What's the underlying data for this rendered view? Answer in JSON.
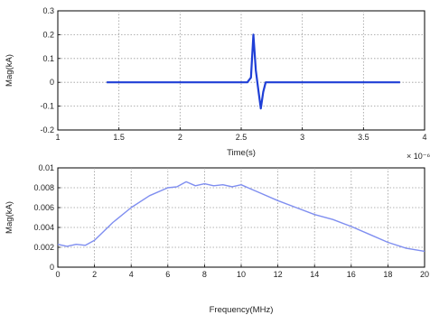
{
  "colors": {
    "line": "#1f3fd6",
    "line_light": "#7f8ef0",
    "grid": "#9a9a9a",
    "axis": "#000000"
  },
  "chart_data": [
    {
      "type": "line",
      "title": "",
      "xlabel": "Time(s)",
      "ylabel": "Mag(kA)",
      "x_multiplier_label": "× 10⁻⁶",
      "xlim": [
        1,
        4
      ],
      "ylim": [
        -0.2,
        0.3
      ],
      "xticks": [
        1,
        1.5,
        2,
        2.5,
        3,
        3.5,
        4
      ],
      "xtick_labels": [
        "1",
        "1.5",
        "2",
        "2.5",
        "3",
        "3.5",
        "4"
      ],
      "yticks": [
        -0.2,
        -0.1,
        0,
        0.1,
        0.2,
        0.3
      ],
      "ytick_labels": [
        "-0.2",
        "-0.1",
        "0",
        "0.1",
        "0.2",
        "0.3"
      ],
      "grid": true,
      "series": [
        {
          "x": [
            1.4,
            1.6,
            1.8,
            2.0,
            2.2,
            2.4,
            2.55,
            2.58,
            2.6,
            2.62,
            2.64,
            2.66,
            2.68,
            2.7,
            2.8,
            3.0,
            3.2,
            3.4,
            3.6,
            3.8
          ],
          "y": [
            0,
            0,
            0,
            0,
            0,
            0,
            0,
            0.02,
            0.2,
            0.05,
            -0.03,
            -0.11,
            -0.04,
            0,
            0,
            0,
            0,
            0,
            0,
            0
          ]
        }
      ]
    },
    {
      "type": "line",
      "title": "",
      "xlabel": "Frequency(MHz)",
      "ylabel": "Mag(kA)",
      "xlim": [
        0,
        20
      ],
      "ylim": [
        0,
        0.01
      ],
      "xticks": [
        0,
        2,
        4,
        6,
        8,
        10,
        12,
        14,
        16,
        18,
        20
      ],
      "xtick_labels": [
        "0",
        "2",
        "4",
        "6",
        "8",
        "10",
        "12",
        "14",
        "16",
        "18",
        "20"
      ],
      "yticks": [
        0,
        0.002,
        0.004,
        0.006,
        0.008,
        0.01
      ],
      "ytick_labels": [
        "0",
        "0.002",
        "0.004",
        "0.006",
        "0.008",
        "0.01"
      ],
      "grid": true,
      "series": [
        {
          "x": [
            0,
            0.5,
            1,
            1.5,
            2,
            3,
            4,
            5,
            6,
            6.5,
            7,
            7.5,
            8,
            8.5,
            9,
            9.5,
            10,
            10.5,
            11,
            12,
            13,
            14,
            15,
            16,
            17,
            18,
            19,
            20
          ],
          "y": [
            0.0023,
            0.0021,
            0.0023,
            0.0022,
            0.0027,
            0.0045,
            0.006,
            0.0072,
            0.008,
            0.0081,
            0.0086,
            0.0082,
            0.0084,
            0.0082,
            0.0083,
            0.0081,
            0.0083,
            0.0079,
            0.0075,
            0.0067,
            0.006,
            0.0053,
            0.0048,
            0.0041,
            0.0033,
            0.0025,
            0.0019,
            0.0016
          ]
        }
      ]
    }
  ]
}
